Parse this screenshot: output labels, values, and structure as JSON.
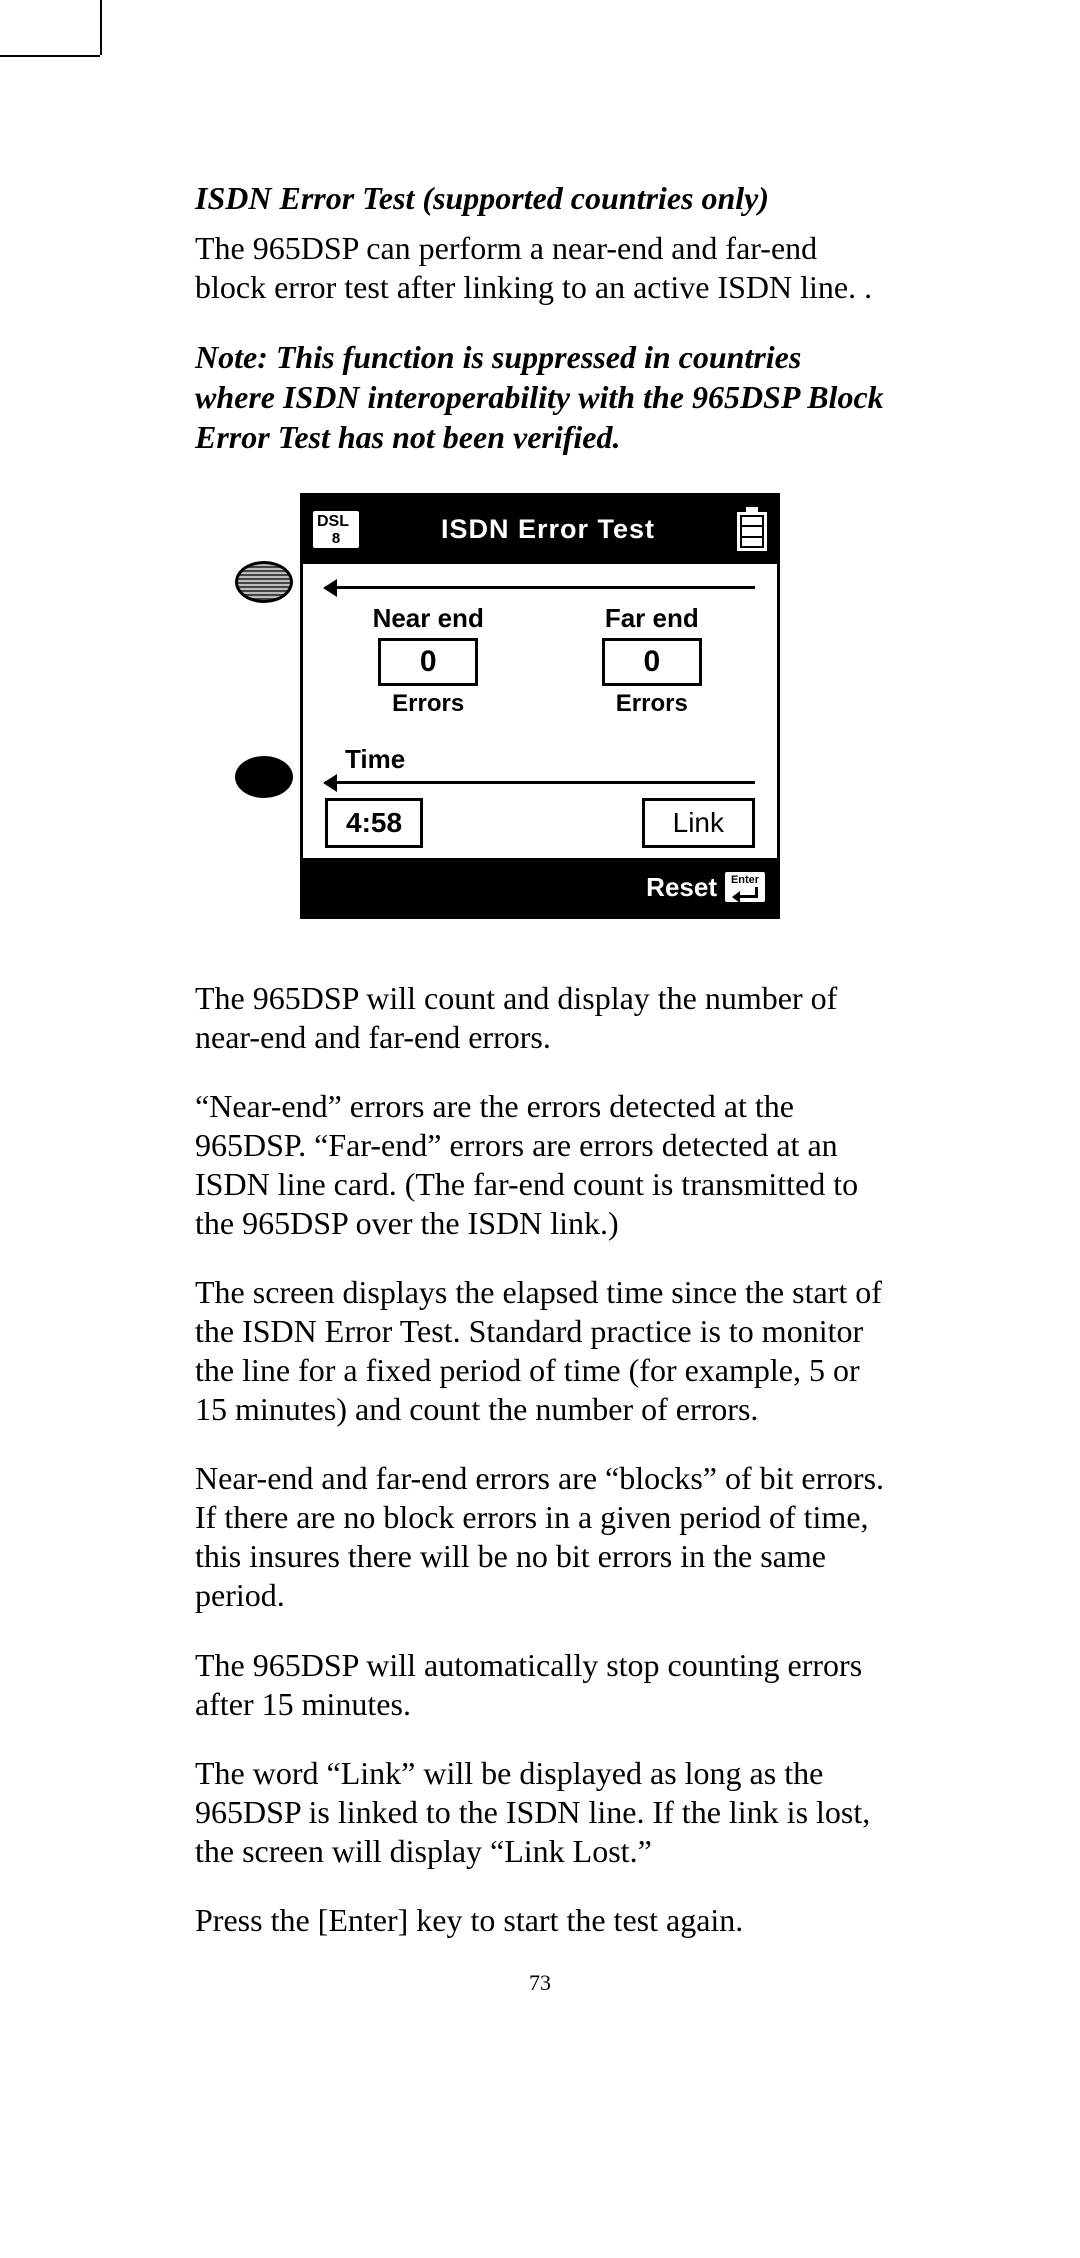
{
  "heading": "ISDN Error Test (supported countries only)",
  "intro": "The 965DSP can perform a  near-end and far-end block error test after linking to an active ISDN line. .",
  "note": "Note:  This function is suppressed in countries where ISDN interoperability with the 965DSP Block Error Test has not been verified.",
  "device": {
    "dsl_label": "DSL",
    "dsl_num": "8",
    "title": "ISDN Error Test",
    "near_label": "Near end",
    "far_label": "Far end",
    "near_val": "0",
    "far_val": "0",
    "errors_label": "Errors",
    "time_label": "Time",
    "time_val": "4:58",
    "link_label": "Link",
    "reset_label": "Reset",
    "enter_label": "Enter"
  },
  "p1": "The 965DSP will count and display the number of near-end and far-end errors.",
  "p2": "“Near-end” errors are the errors detected at the 965DSP. “Far-end” errors are errors detected at an ISDN line card. (The far-end count is transmitted to the 965DSP over the ISDN link.)",
  "p3": "The screen displays the elapsed time since the start of the ISDN Error Test. Standard practice is to monitor the line for a fixed period of time (for example, 5 or 15 minutes) and count the number of errors.",
  "p4": "Near-end and far-end errors are “blocks” of bit errors. If there are no block errors in a given period of time, this insures there will be no bit errors in the same period.",
  "p5": "The 965DSP will automatically stop counting errors after 15 minutes.",
  "p6": "The word “Link” will be displayed as long as the 965DSP is linked to the ISDN line. If the link is lost, the screen will display “Link Lost.”",
  "p7": "Press the [Enter] key to start the test again.",
  "page_number": "73"
}
